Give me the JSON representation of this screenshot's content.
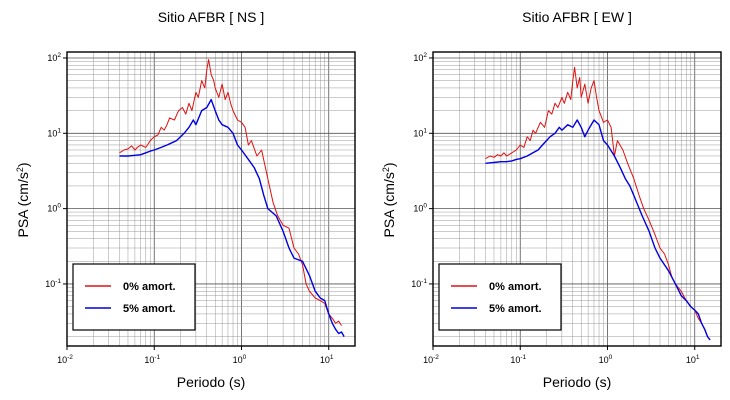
{
  "chart_data": [
    {
      "type": "line",
      "title": "Sitio AFBR [ NS ]",
      "xlabel": "Periodo (s)",
      "ylabel_prefix": "PSA (cm/s",
      "ylabel_exp": "2",
      "ylabel_suffix": ")",
      "xscale": "log",
      "yscale": "log",
      "xlim": [
        0.01,
        20
      ],
      "ylim": [
        0.015,
        120
      ],
      "grid": true,
      "legend_position": "bottom-left",
      "xticks": [
        {
          "base": "10",
          "exp": "-2"
        },
        {
          "base": "10",
          "exp": "-1"
        },
        {
          "base": "10",
          "exp": "0"
        },
        {
          "base": "10",
          "exp": "1"
        }
      ],
      "yticks": [
        {
          "base": "10",
          "exp": "-1"
        },
        {
          "base": "10",
          "exp": "0"
        },
        {
          "base": "10",
          "exp": "1"
        },
        {
          "base": "10",
          "exp": "2"
        }
      ],
      "series": [
        {
          "name": "0% amort.",
          "color": "#e01010",
          "x": [
            0.04,
            0.045,
            0.05,
            0.055,
            0.06,
            0.065,
            0.07,
            0.08,
            0.09,
            0.1,
            0.11,
            0.12,
            0.13,
            0.14,
            0.15,
            0.17,
            0.19,
            0.21,
            0.23,
            0.25,
            0.27,
            0.3,
            0.32,
            0.35,
            0.38,
            0.4,
            0.42,
            0.45,
            0.48,
            0.5,
            0.55,
            0.6,
            0.65,
            0.7,
            0.75,
            0.8,
            0.9,
            1.0,
            1.1,
            1.2,
            1.3,
            1.5,
            1.7,
            2.0,
            2.3,
            2.6,
            3.0,
            3.5,
            4.0,
            4.5,
            5.0,
            5.5,
            6.0,
            7.0,
            8.0,
            9.0,
            10.0,
            11.0,
            12.0,
            13.0,
            14.0
          ],
          "y": [
            5.5,
            6.0,
            6.2,
            6.8,
            6.0,
            6.6,
            7.0,
            6.5,
            8.0,
            9.0,
            9.5,
            12.0,
            11.0,
            13.0,
            16.0,
            15.0,
            20.0,
            22.0,
            18.0,
            25.0,
            20.0,
            35.0,
            30.0,
            50.0,
            40.0,
            70.0,
            95.0,
            60.0,
            50.0,
            40.0,
            30.0,
            45.0,
            28.0,
            35.0,
            25.0,
            20.0,
            15.0,
            14.0,
            12.0,
            7.0,
            8.0,
            5.0,
            6.0,
            2.5,
            1.2,
            0.8,
            0.6,
            0.55,
            0.3,
            0.25,
            0.18,
            0.1,
            0.08,
            0.065,
            0.06,
            0.055,
            0.04,
            0.035,
            0.03,
            0.032,
            0.028
          ]
        },
        {
          "name": "5% amort.",
          "color": "#0000e0",
          "x": [
            0.04,
            0.05,
            0.06,
            0.07,
            0.08,
            0.09,
            0.1,
            0.12,
            0.14,
            0.16,
            0.18,
            0.2,
            0.22,
            0.25,
            0.28,
            0.3,
            0.35,
            0.4,
            0.45,
            0.5,
            0.55,
            0.6,
            0.7,
            0.8,
            0.9,
            1.0,
            1.2,
            1.4,
            1.6,
            1.8,
            2.0,
            2.5,
            3.0,
            3.5,
            4.0,
            5.0,
            6.0,
            7.0,
            8.0,
            9.0,
            10.0,
            11.0,
            12.0,
            13.0,
            14.0,
            15.0
          ],
          "y": [
            5.0,
            5.0,
            5.1,
            5.2,
            5.5,
            5.8,
            6.0,
            6.5,
            7.0,
            7.5,
            8.0,
            9.0,
            10.0,
            12.0,
            15.0,
            13.0,
            20.0,
            22.0,
            28.0,
            20.0,
            15.0,
            13.0,
            12.0,
            10.0,
            7.0,
            6.0,
            4.5,
            3.5,
            2.5,
            1.5,
            1.0,
            0.8,
            0.5,
            0.3,
            0.22,
            0.2,
            0.13,
            0.08,
            0.065,
            0.06,
            0.04,
            0.03,
            0.025,
            0.022,
            0.023,
            0.02
          ]
        }
      ]
    },
    {
      "type": "line",
      "title": "Sitio AFBR [ EW ]",
      "xlabel": "Periodo (s)",
      "ylabel_prefix": "PSA (cm/s",
      "ylabel_exp": "2",
      "ylabel_suffix": ")",
      "xscale": "log",
      "yscale": "log",
      "xlim": [
        0.01,
        20
      ],
      "ylim": [
        0.015,
        120
      ],
      "grid": true,
      "legend_position": "bottom-left",
      "xticks": [
        {
          "base": "10",
          "exp": "-2"
        },
        {
          "base": "10",
          "exp": "-1"
        },
        {
          "base": "10",
          "exp": "0"
        },
        {
          "base": "10",
          "exp": "1"
        }
      ],
      "yticks": [
        {
          "base": "10",
          "exp": "-1"
        },
        {
          "base": "10",
          "exp": "0"
        },
        {
          "base": "10",
          "exp": "1"
        },
        {
          "base": "10",
          "exp": "2"
        }
      ],
      "series": [
        {
          "name": "0% amort.",
          "color": "#e01010",
          "x": [
            0.04,
            0.045,
            0.05,
            0.055,
            0.06,
            0.065,
            0.07,
            0.08,
            0.09,
            0.1,
            0.11,
            0.12,
            0.13,
            0.14,
            0.15,
            0.17,
            0.19,
            0.21,
            0.23,
            0.25,
            0.27,
            0.3,
            0.32,
            0.35,
            0.38,
            0.4,
            0.42,
            0.45,
            0.48,
            0.5,
            0.55,
            0.6,
            0.65,
            0.7,
            0.75,
            0.8,
            0.9,
            1.0,
            1.1,
            1.2,
            1.3,
            1.5,
            1.7,
            2.0,
            2.3,
            2.6,
            3.0,
            3.5,
            4.0,
            4.5,
            5.0,
            5.5,
            6.0,
            7.0,
            8.0,
            9.0,
            10.0,
            11.0,
            12.0,
            13.0,
            14.0,
            15.0
          ],
          "y": [
            4.6,
            5.0,
            4.8,
            5.2,
            5.0,
            5.5,
            5.0,
            5.5,
            6.0,
            7.0,
            6.5,
            9.0,
            8.0,
            11.0,
            10.0,
            14.0,
            12.0,
            20.0,
            18.0,
            25.0,
            22.0,
            30.0,
            25.0,
            35.0,
            28.0,
            50.0,
            75.0,
            40.0,
            55.0,
            30.0,
            45.0,
            25.0,
            40.0,
            50.0,
            30.0,
            20.0,
            14.0,
            15.0,
            12.0,
            5.0,
            8.0,
            6.0,
            4.0,
            2.5,
            1.5,
            1.0,
            0.7,
            0.45,
            0.3,
            0.25,
            0.18,
            0.12,
            0.1,
            0.08,
            0.06,
            0.05,
            0.045,
            0.035,
            0.03,
            0.025,
            0.02,
            0.018
          ]
        },
        {
          "name": "5% amort.",
          "color": "#0000e0",
          "x": [
            0.04,
            0.05,
            0.06,
            0.07,
            0.08,
            0.09,
            0.1,
            0.12,
            0.14,
            0.16,
            0.18,
            0.2,
            0.22,
            0.25,
            0.28,
            0.3,
            0.35,
            0.4,
            0.45,
            0.5,
            0.55,
            0.6,
            0.7,
            0.8,
            0.9,
            1.0,
            1.2,
            1.4,
            1.6,
            1.8,
            2.0,
            2.5,
            3.0,
            3.5,
            4.0,
            5.0,
            6.0,
            7.0,
            8.0,
            9.0,
            10.0,
            11.0,
            12.0,
            13.0,
            14.0,
            15.0
          ],
          "y": [
            4.0,
            4.1,
            4.2,
            4.2,
            4.3,
            4.5,
            4.6,
            5.0,
            5.5,
            6.0,
            7.0,
            8.0,
            9.0,
            10.0,
            12.0,
            11.0,
            13.0,
            12.0,
            15.0,
            12.0,
            9.0,
            11.0,
            15.0,
            13.0,
            8.0,
            7.0,
            5.0,
            3.5,
            2.5,
            2.0,
            1.5,
            0.8,
            0.5,
            0.3,
            0.22,
            0.15,
            0.1,
            0.07,
            0.06,
            0.05,
            0.045,
            0.04,
            0.03,
            0.025,
            0.02,
            0.018
          ]
        }
      ]
    }
  ]
}
